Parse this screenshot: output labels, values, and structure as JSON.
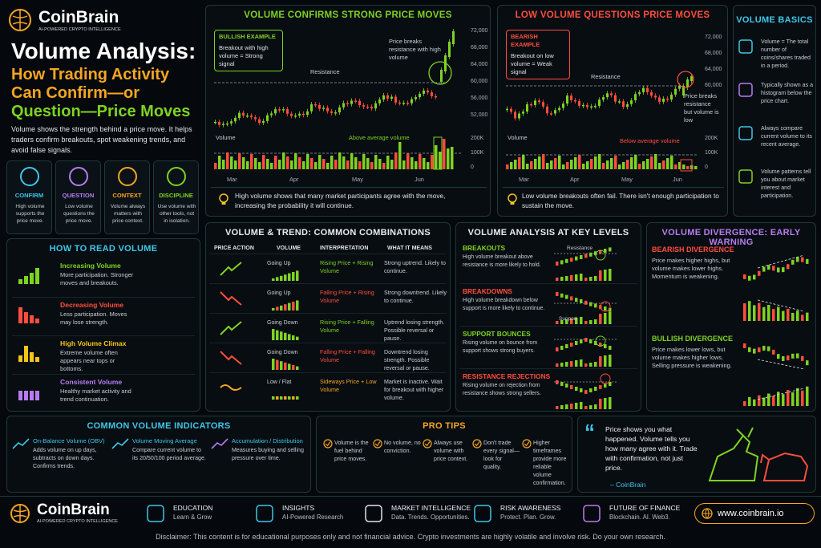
{
  "brand": {
    "name": "CoinBrain",
    "tagline": "AI-POWERED CRYPTO INTELLIGENCE"
  },
  "title": {
    "line1": "Volume Analysis:",
    "line2": "How Trading Activity",
    "line3": "Can Confirm—or",
    "line4": "Question—Price Moves"
  },
  "intro": "Volume shows the strength behind a price move. It helps traders confirm breakouts, spot weakening trends, and avoid false signals.",
  "roles": [
    {
      "label": "CONFIRM",
      "desc": "High volume supports the price move.",
      "color": "#3fc7e8",
      "icon": "search-icon"
    },
    {
      "label": "QUESTION",
      "desc": "Low volume questions the price move.",
      "color": "#b77df0",
      "icon": "question-icon"
    },
    {
      "label": "CONTEXT",
      "desc": "Volume always matters with price context.",
      "color": "#f5a623",
      "icon": "scale-icon"
    },
    {
      "label": "DISCIPLINE",
      "desc": "Use volume with other tools, not in isolation.",
      "color": "#7ed321",
      "icon": "shield-icon"
    }
  ],
  "bullish": {
    "title": "VOLUME CONFIRMS STRONG PRICE MOVES",
    "example_title": "BULLISH EXAMPLE",
    "example_body": "Breakout with high volume = Strong signal",
    "resistance": "Resistance",
    "annotation": "Price breaks resistance with high volume",
    "volume_label": "Volume",
    "above": "Above average volume",
    "y_ticks": [
      "72,000",
      "68,000",
      "64,000",
      "60,000",
      "56,000",
      "52,000"
    ],
    "vol_ticks": [
      "200K",
      "100K",
      "0"
    ],
    "months": [
      "Mar",
      "Apr",
      "May",
      "Jun"
    ],
    "tip": "High volume shows that many market participants agree with the move, increasing the probability it will continue."
  },
  "bearish": {
    "title": "LOW VOLUME QUESTIONS PRICE MOVES",
    "example_title": "BEARISH EXAMPLE",
    "example_body": "Breakout on low volume = Weak signal",
    "resistance": "Resistance",
    "annotation": "Price breaks resistance but volume is low",
    "volume_label": "Volume",
    "below": "Below average volume",
    "y_ticks": [
      "72,000",
      "68,000",
      "64,000",
      "60,000"
    ],
    "vol_ticks": [
      "200K",
      "100K",
      "0"
    ],
    "months": [
      "Mar",
      "Apr",
      "May",
      "Jun"
    ],
    "tip": "Low volume breakouts often fail. There isn't enough participation to sustain the move."
  },
  "basics": {
    "title": "VOLUME BASICS",
    "items": [
      {
        "text": "Volume = The total number of coins/shares traded in a period.",
        "icon": "bars-icon"
      },
      {
        "text": "Typically shown as a histogram below the price chart.",
        "icon": "clock-icon"
      },
      {
        "text": "Always compare current volume to its recent average.",
        "icon": "updown-icon"
      },
      {
        "text": "Volume patterns tell you about market interest and participation.",
        "icon": "calendar-icon"
      }
    ]
  },
  "howto": {
    "title": "HOW TO READ VOLUME",
    "items": [
      {
        "name": "Increasing Volume",
        "desc": "More participation. Stronger moves and breakouts.",
        "color": "#7ed321"
      },
      {
        "name": "Decreasing Volume",
        "desc": "Less participation. Moves may lose strength.",
        "color": "#ff4d3d"
      },
      {
        "name": "High Volume Climax",
        "desc": "Extreme volume often appears near tops or bottoms.",
        "color": "#f5c518"
      },
      {
        "name": "Consistent Volume",
        "desc": "Healthy market activity and trend continuation.",
        "color": "#b77df0"
      }
    ]
  },
  "trend": {
    "title": "VOLUME & TREND: COMMON COMBINATIONS",
    "headers": [
      "PRICE ACTION",
      "VOLUME",
      "INTERPRETATION",
      "WHAT IT MEANS"
    ],
    "rows": [
      {
        "volume": "Going Up",
        "interp": "Rising Price + Rising Volume",
        "meaning": "Strong uptrend. Likely to continue.",
        "color": "#7ed321"
      },
      {
        "volume": "Going Up",
        "interp": "Falling Price + Rising Volume",
        "meaning": "Strong downtrend. Likely to continue.",
        "color": "#ff4d3d"
      },
      {
        "volume": "Going Down",
        "interp": "Rising Price + Falling Volume",
        "meaning": "Uptrend losing strength. Possible reversal or pause.",
        "color": "#7ed321"
      },
      {
        "volume": "Going Down",
        "interp": "Falling Price + Falling Volume",
        "meaning": "Downtrend losing strength. Possible reversal or pause.",
        "color": "#ff4d3d"
      },
      {
        "volume": "Low / Flat",
        "interp": "Sideways Price + Low Volume",
        "meaning": "Market is inactive. Wait for breakout with higher volume.",
        "color": "#f5a623"
      }
    ]
  },
  "levels": {
    "title": "VOLUME ANALYSIS AT KEY LEVELS",
    "items": [
      {
        "name": "BREAKOUTS",
        "desc": "High volume breakout above resistance is more likely to hold.",
        "color": "#7ed321",
        "tag": "Resistance"
      },
      {
        "name": "BREAKDOWNS",
        "desc": "High volume breakdown below support is more likely to continue.",
        "color": "#ff4d3d",
        "tag": "Support"
      },
      {
        "name": "SUPPORT BOUNCES",
        "desc": "Rising volume on bounce from support shows strong buyers.",
        "color": "#7ed321",
        "tag": ""
      },
      {
        "name": "RESISTANCE REJECTIONS",
        "desc": "Rising volume on rejection from resistance shows strong sellers.",
        "color": "#ff4d3d",
        "tag": ""
      }
    ]
  },
  "divergence": {
    "title": "VOLUME DIVERGENCE: EARLY WARNING",
    "bear_title": "BEARISH DIVERGENCE",
    "bear_desc": "Price makes higher highs, but volume makes lower highs. Momentum is weakening.",
    "bull_title": "BULLISH DIVERGENCE",
    "bull_desc": "Price makes lower lows, but volume makes higher lows. Selling pressure is weakening."
  },
  "indicators": {
    "title": "COMMON VOLUME INDICATORS",
    "items": [
      {
        "name": "On-Balance Volume (OBV)",
        "desc": "Adds volume on up days, subtracts on down days. Confirms trends."
      },
      {
        "name": "Volume Moving Average",
        "desc": "Compare current volume to its 20/50/100 period average."
      },
      {
        "name": "Accumulation / Distribution",
        "desc": "Measures buying and selling pressure over time."
      }
    ]
  },
  "pro": {
    "title": "PRO TIPS",
    "items": [
      "Volume is the fuel behind price moves.",
      "No volume, no conviction.",
      "Always use volume with price context.",
      "Don't trade every signal—look for quality.",
      "Higher timeframes provide more reliable volume confirmation."
    ]
  },
  "quote": {
    "text": "Price shows you what happened. Volume tells you how many agree with it. Trade with confirmation, not just price.",
    "author": "– CoinBrain"
  },
  "footer": {
    "items": [
      {
        "t": "EDUCATION",
        "s": "Learn & Grow"
      },
      {
        "t": "INSIGHTS",
        "s": "AI-Powered Research"
      },
      {
        "t": "MARKET INTELLIGENCE",
        "s": "Data. Trends. Opportunities."
      },
      {
        "t": "RISK AWARENESS",
        "s": "Protect. Plan. Grow."
      },
      {
        "t": "FUTURE OF FINANCE",
        "s": "Blockchain. AI. Web3."
      }
    ],
    "url": "www.coinbrain.io",
    "disclaimer": "Disclaimer: This content is for educational purposes only and not financial advice. Crypto investments are highly volatile and involve risk. Do your own research."
  },
  "colors": {
    "green": "#7ed321",
    "red": "#ff4d3d",
    "orange": "#f5a623",
    "cyan": "#3fc7e8",
    "purple": "#b77df0"
  }
}
